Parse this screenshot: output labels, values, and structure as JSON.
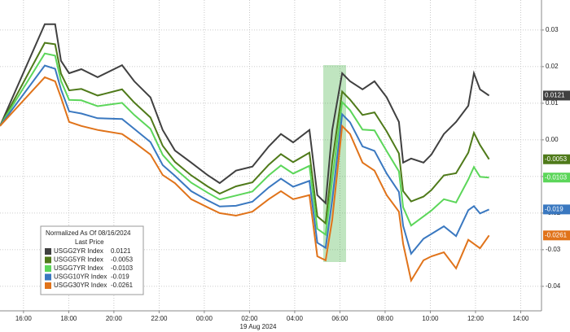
{
  "chart_data": {
    "type": "line",
    "x": [
      -1.04,
      0.94,
      1.4,
      1.66,
      2.02,
      2.56,
      3.28,
      4.36,
      4.9,
      5.62,
      6.16,
      6.7,
      7.42,
      8.14,
      8.68,
      9.4,
      10.13,
      10.85,
      11.39,
      11.93,
      12.65,
      13.0,
      13.37,
      13.66,
      14.1,
      14.45,
      15.0,
      15.53,
      16.07,
      16.61,
      16.8,
      17.15,
      17.7,
      18.05,
      18.6,
      19.14,
      19.68,
      19.93,
      20.2,
      20.6
    ],
    "series": [
      {
        "name": "USGG2YR Index",
        "color": "#404040",
        "values": [
          0.0038,
          0.0316,
          0.0316,
          0.0216,
          0.0182,
          0.0193,
          0.0171,
          0.0204,
          0.016,
          0.0116,
          0.0027,
          -0.0029,
          -0.0062,
          -0.0096,
          -0.0118,
          -0.0084,
          -0.0073,
          -0.0018,
          0.0016,
          -0.0007,
          0.0027,
          -0.0151,
          -0.0173,
          0.0027,
          0.0182,
          0.016,
          0.0138,
          0.016,
          0.0116,
          0.0049,
          -0.0062,
          -0.0051,
          -0.0062,
          -0.004,
          0.0016,
          0.0049,
          0.0093,
          0.0182,
          0.0138,
          0.0121
        ]
      },
      {
        "name": "USGG5YR Index",
        "color": "#4f7a1a",
        "values": [
          0.0038,
          0.0265,
          0.0261,
          0.0181,
          0.0135,
          0.0139,
          0.0121,
          0.0138,
          0.0102,
          0.0061,
          -0.0016,
          -0.006,
          -0.0097,
          -0.0127,
          -0.0147,
          -0.0127,
          -0.0116,
          -0.0068,
          -0.0039,
          -0.0061,
          -0.0035,
          -0.0209,
          -0.0228,
          -0.0059,
          0.0132,
          0.011,
          0.0068,
          0.0075,
          0.0023,
          -0.0037,
          -0.014,
          -0.0168,
          -0.0155,
          -0.0137,
          -0.0097,
          -0.0091,
          -0.0035,
          0.0019,
          -0.0014,
          -0.0053
        ]
      },
      {
        "name": "USGG7YR Index",
        "color": "#5cd65a",
        "values": [
          0.0038,
          0.0236,
          0.023,
          0.0161,
          0.0109,
          0.0108,
          0.0092,
          0.0101,
          0.0068,
          0.003,
          -0.0041,
          -0.0078,
          -0.0117,
          -0.0144,
          -0.0163,
          -0.0152,
          -0.0141,
          -0.0097,
          -0.007,
          -0.0092,
          -0.0071,
          -0.0243,
          -0.0259,
          -0.0108,
          0.0103,
          0.0081,
          0.0028,
          0.0026,
          -0.0031,
          -0.0086,
          -0.0184,
          -0.0234,
          -0.0209,
          -0.0193,
          -0.0162,
          -0.0171,
          -0.0108,
          -0.0074,
          -0.0101,
          -0.0103
        ]
      },
      {
        "name": "USGG10YR Index",
        "color": "#3a78c0",
        "values": [
          0.0038,
          0.0203,
          0.0194,
          0.0138,
          0.0078,
          0.0072,
          0.0059,
          0.0057,
          0.003,
          -0.0006,
          -0.0069,
          -0.0098,
          -0.014,
          -0.0165,
          -0.0182,
          -0.018,
          -0.0169,
          -0.013,
          -0.0106,
          -0.0128,
          -0.0112,
          -0.0281,
          -0.0295,
          -0.0164,
          0.007,
          0.0048,
          -0.0018,
          -0.003,
          -0.0092,
          -0.0142,
          -0.0235,
          -0.0311,
          -0.027,
          -0.0257,
          -0.0236,
          -0.0263,
          -0.0192,
          -0.0181,
          -0.0201,
          -0.019
        ]
      },
      {
        "name": "USGG30YR Index",
        "color": "#e0731a",
        "values": [
          0.0038,
          0.0171,
          0.016,
          0.0116,
          0.0049,
          0.0038,
          0.0027,
          0.0016,
          -0.0007,
          -0.004,
          -0.0096,
          -0.0118,
          -0.0162,
          -0.0184,
          -0.02,
          -0.0207,
          -0.0196,
          -0.0162,
          -0.014,
          -0.0162,
          -0.0151,
          -0.0318,
          -0.0329,
          -0.0218,
          0.0038,
          0.0016,
          -0.0062,
          -0.0084,
          -0.0151,
          -0.0196,
          -0.0284,
          -0.0384,
          -0.0329,
          -0.0318,
          -0.0307,
          -0.0351,
          -0.0273,
          -0.0284,
          -0.0296,
          -0.0261
        ]
      }
    ],
    "legend_title": "Normalized As Of 08/16/2024",
    "legend_subtitle": "Last Price",
    "date_label": "19 Aug 2024",
    "xlim": [
      -1.04,
      22.92
    ],
    "xticks": [
      {
        "value": 0,
        "label": "16:00"
      },
      {
        "value": 2,
        "label": "18:00"
      },
      {
        "value": 4,
        "label": "20:00"
      },
      {
        "value": 6,
        "label": "22:00"
      },
      {
        "value": 8,
        "label": "00:00"
      },
      {
        "value": 10,
        "label": "02:00"
      },
      {
        "value": 12,
        "label": "04:00"
      },
      {
        "value": 14,
        "label": "06:00"
      },
      {
        "value": 16,
        "label": "08:00"
      },
      {
        "value": 18,
        "label": "10:00"
      },
      {
        "value": 20,
        "label": "12:00"
      },
      {
        "value": 22,
        "label": "14:00"
      }
    ],
    "ylim": [
      -0.0467,
      0.0382
    ],
    "yticks": [
      -0.04,
      -0.03,
      -0.02,
      -0.01,
      {
        "value": 0,
        "label": "0.00"
      },
      0.01,
      0.02,
      0.03
    ],
    "grid": true
  }
}
